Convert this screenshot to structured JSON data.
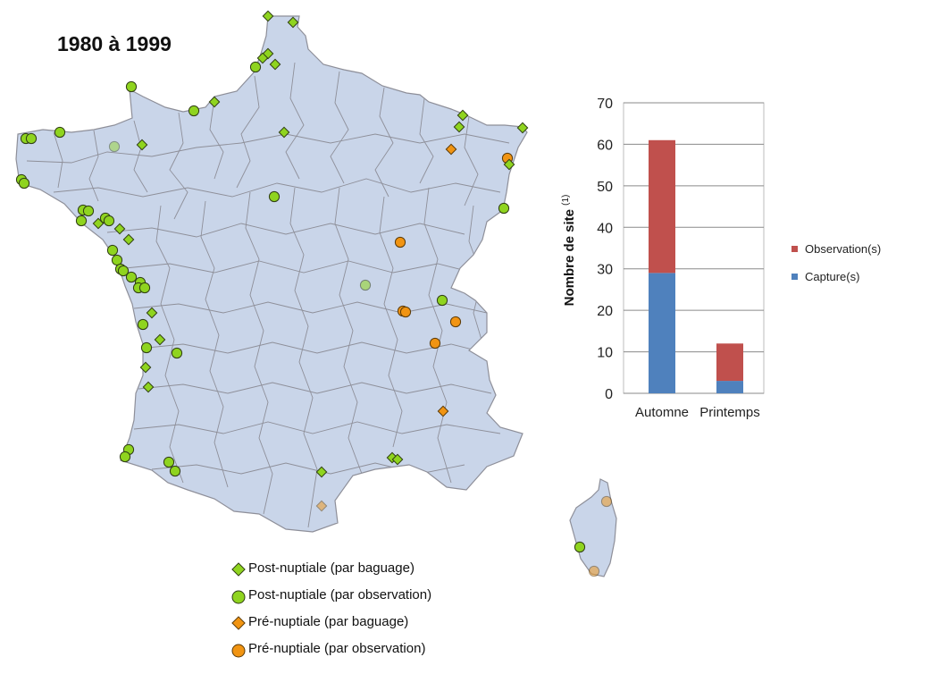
{
  "title": "1980 à 1999",
  "colors": {
    "land": "#c9d5e9",
    "border": "#8e8f99",
    "green": "#8fd41f",
    "orange": "#f19412",
    "capture": "#4f81bd",
    "observation": "#c0504d"
  },
  "legend": [
    {
      "symbol": "diamond",
      "color": "#8fd41f",
      "label": "Post-nuptiale (par baguage)"
    },
    {
      "symbol": "circle",
      "color": "#8fd41f",
      "label": "Post-nuptiale (par observation)"
    },
    {
      "symbol": "diamond",
      "color": "#f19412",
      "label": "Pré-nuptiale (par baguage)"
    },
    {
      "symbol": "circle",
      "color": "#f19412",
      "label": "Pré-nuptiale (par observation)"
    }
  ],
  "chart_data": {
    "type": "bar",
    "stacked": true,
    "categories": [
      "Automne",
      "Printemps"
    ],
    "series": [
      {
        "name": "Capture(s)",
        "color": "#4f81bd",
        "values": [
          29,
          3
        ]
      },
      {
        "name": "Observation(s)",
        "color": "#c0504d",
        "values": [
          32,
          9
        ]
      }
    ],
    "ylabel": "Nombre de site",
    "ylabel_superscript": "(1)",
    "ylim": [
      0,
      70
    ],
    "yticks": [
      0,
      10,
      20,
      30,
      40,
      50,
      60,
      70
    ],
    "grid": true,
    "legend_position": "right"
  }
}
